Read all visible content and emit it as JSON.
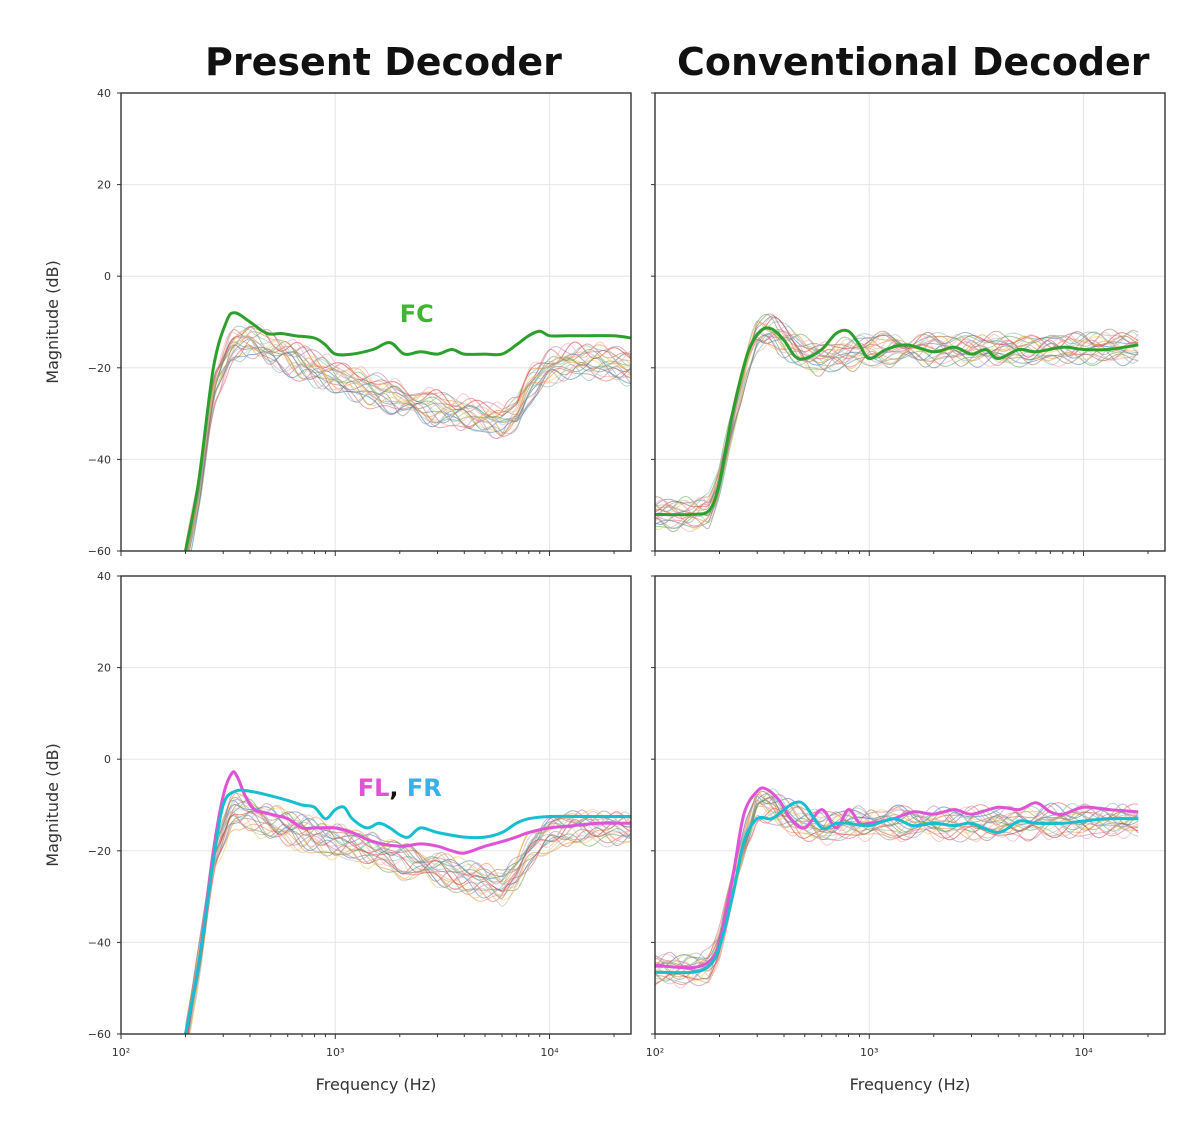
{
  "column_titles": [
    "Present Decoder",
    "Conventional Decoder"
  ],
  "chart_data": [
    {
      "type": "line",
      "panel": "top-left",
      "title": "Present Decoder",
      "xlabel": "",
      "ylabel": "Magnitude (dB)",
      "xscale": "log",
      "xlim": [
        100,
        24000
      ],
      "ylim": [
        -60,
        40
      ],
      "xticks": [
        {
          "value": 100,
          "label": "10²"
        },
        {
          "value": 1000,
          "label": "10³"
        },
        {
          "value": 10000,
          "label": "10⁴"
        }
      ],
      "yticks": [
        {
          "value": -60,
          "label": "−60"
        },
        {
          "value": -40,
          "label": "−40"
        },
        {
          "value": -20,
          "label": "−20"
        },
        {
          "value": 0,
          "label": "0"
        },
        {
          "value": 20,
          "label": "20"
        },
        {
          "value": 40,
          "label": "40"
        }
      ],
      "show_xtick_labels": false,
      "show_ytick_labels": true,
      "grid": true,
      "annotations": [
        {
          "parts": [
            {
              "text": "FC",
              "color": "#3db82e"
            }
          ],
          "x": 2400,
          "y": -10
        }
      ],
      "bundle": {
        "description": "many thin colored channel responses",
        "count": 22,
        "spread_db": 2.5,
        "colors": [
          "#4e79a7",
          "#f28e2b",
          "#e15759",
          "#76b7b2",
          "#59a14f",
          "#edc948",
          "#b07aa1",
          "#ff9da7",
          "#9c755f",
          "#bab0ac",
          "#1f77b4",
          "#d62728"
        ],
        "x": [
          200,
          230,
          270,
          330,
          400,
          500,
          700,
          1000,
          1500,
          2000,
          3000,
          4000,
          5000,
          6000,
          7000,
          8000,
          10000,
          13000,
          17000,
          24000
        ],
        "y": [
          -62,
          -48,
          -25,
          -15,
          -14,
          -16,
          -19,
          -22,
          -25,
          -27,
          -29,
          -30,
          -31,
          -32,
          -30,
          -24,
          -20,
          -18.5,
          -18.5,
          -20
        ]
      },
      "series": [
        {
          "name": "FC",
          "color": "#2ca02c",
          "width": 3,
          "x": [
            200,
            230,
            270,
            310,
            340,
            400,
            480,
            560,
            650,
            800,
            900,
            1000,
            1200,
            1500,
            1800,
            2100,
            2500,
            3000,
            3500,
            4000,
            5000,
            6000,
            7000,
            8000,
            9000,
            10000,
            12000,
            15000,
            20000,
            24000
          ],
          "y": [
            -60,
            -45,
            -20,
            -10,
            -8,
            -10,
            -12.5,
            -12.5,
            -13,
            -13.5,
            -15,
            -17,
            -17,
            -16,
            -14.5,
            -17,
            -16.5,
            -17,
            -16,
            -17,
            -17,
            -17,
            -15,
            -13,
            -12,
            -13,
            -13,
            -13,
            -13,
            -13.5
          ]
        }
      ]
    },
    {
      "type": "line",
      "panel": "top-right",
      "title": "Conventional Decoder",
      "xlabel": "",
      "ylabel": "",
      "xscale": "log",
      "xlim": [
        100,
        24000
      ],
      "ylim": [
        -60,
        40
      ],
      "xticks": [
        {
          "value": 100,
          "label": "10²"
        },
        {
          "value": 1000,
          "label": "10³"
        },
        {
          "value": 10000,
          "label": "10⁴"
        }
      ],
      "yticks": [
        {
          "value": -60,
          "label": "−60"
        },
        {
          "value": -40,
          "label": "−40"
        },
        {
          "value": -20,
          "label": "−20"
        },
        {
          "value": 0,
          "label": "0"
        },
        {
          "value": 20,
          "label": "20"
        },
        {
          "value": 40,
          "label": "40"
        }
      ],
      "show_xtick_labels": false,
      "show_ytick_labels": false,
      "grid": true,
      "annotations": [],
      "bundle": {
        "description": "many thin colored channel responses",
        "count": 22,
        "spread_db": 2.2,
        "colors": [
          "#4e79a7",
          "#f28e2b",
          "#e15759",
          "#76b7b2",
          "#59a14f",
          "#edc948",
          "#b07aa1",
          "#ff9da7",
          "#9c755f",
          "#bab0ac",
          "#1f77b4",
          "#d62728"
        ],
        "x": [
          100,
          150,
          180,
          200,
          230,
          270,
          300,
          350,
          400,
          500,
          600,
          800,
          1000,
          1500,
          2000,
          3000,
          5000,
          8000,
          12000,
          18000
        ],
        "y": [
          -52,
          -52,
          -51,
          -45,
          -32,
          -18,
          -13,
          -12,
          -14,
          -17,
          -18,
          -17,
          -16,
          -16,
          -16,
          -16,
          -16,
          -16,
          -15.5,
          -15.5
        ]
      },
      "series": [
        {
          "name": "",
          "color": "#2ca02c",
          "width": 3,
          "x": [
            100,
            150,
            180,
            200,
            230,
            270,
            310,
            350,
            400,
            450,
            500,
            600,
            700,
            800,
            900,
            1000,
            1200,
            1500,
            2000,
            2500,
            3000,
            3500,
            4000,
            5000,
            6000,
            8000,
            10000,
            13000,
            18000
          ],
          "y": [
            -52,
            -52,
            -51,
            -45,
            -30,
            -17,
            -12,
            -11.5,
            -14,
            -17.5,
            -18,
            -16,
            -12.5,
            -12,
            -15,
            -18,
            -16,
            -15,
            -16.5,
            -15.5,
            -17,
            -16,
            -18,
            -16,
            -16.5,
            -15.5,
            -16,
            -16,
            -15
          ]
        }
      ]
    },
    {
      "type": "line",
      "panel": "bottom-left",
      "title": "",
      "xlabel": "Frequency (Hz)",
      "ylabel": "Magnitude (dB)",
      "xscale": "log",
      "xlim": [
        100,
        24000
      ],
      "ylim": [
        -60,
        40
      ],
      "xticks": [
        {
          "value": 100,
          "label": "10²"
        },
        {
          "value": 1000,
          "label": "10³"
        },
        {
          "value": 10000,
          "label": "10⁴"
        }
      ],
      "yticks": [
        {
          "value": -60,
          "label": "−60"
        },
        {
          "value": -40,
          "label": "−40"
        },
        {
          "value": -20,
          "label": "−20"
        },
        {
          "value": 0,
          "label": "0"
        },
        {
          "value": 20,
          "label": "20"
        },
        {
          "value": 40,
          "label": "40"
        }
      ],
      "show_xtick_labels": true,
      "show_ytick_labels": true,
      "grid": true,
      "annotations": [
        {
          "parts": [
            {
              "text": "FL",
              "color": "#e052d6"
            },
            {
              "text": ", ",
              "color": "#111111"
            },
            {
              "text": "FR",
              "color": "#3ab0e8"
            }
          ],
          "x": 2000,
          "y": -8
        }
      ],
      "bundle": {
        "description": "many thin colored channel responses",
        "count": 22,
        "spread_db": 2.5,
        "colors": [
          "#4e79a7",
          "#f28e2b",
          "#e15759",
          "#76b7b2",
          "#59a14f",
          "#edc948",
          "#b07aa1",
          "#ff9da7",
          "#9c755f",
          "#bab0ac",
          "#1f77b4",
          "#d62728"
        ],
        "x": [
          200,
          230,
          270,
          330,
          400,
          500,
          700,
          1000,
          1500,
          2000,
          3000,
          4000,
          5000,
          6000,
          7000,
          8000,
          10000,
          13000,
          17000,
          24000
        ],
        "y": [
          -62,
          -45,
          -22,
          -11,
          -12,
          -14,
          -16,
          -18,
          -20,
          -22,
          -24,
          -26,
          -27,
          -28,
          -25,
          -20,
          -16.5,
          -15,
          -15,
          -15.5
        ]
      },
      "series": [
        {
          "name": "FL",
          "color": "#e052d6",
          "width": 3,
          "x": [
            200,
            230,
            270,
            300,
            330,
            350,
            380,
            420,
            500,
            600,
            700,
            800,
            1000,
            1200,
            1500,
            2000,
            2500,
            3000,
            3500,
            4000,
            5000,
            6000,
            7000,
            8000,
            10000,
            13000,
            17000,
            24000
          ],
          "y": [
            -60,
            -45,
            -20,
            -8,
            -3,
            -4,
            -8,
            -11,
            -12,
            -13,
            -15,
            -15,
            -15,
            -16,
            -18,
            -19,
            -18.5,
            -19,
            -20,
            -20.5,
            -19,
            -18,
            -17,
            -16,
            -15,
            -14.5,
            -14,
            -14
          ]
        },
        {
          "name": "FR",
          "color": "#17becf",
          "width": 3,
          "x": [
            200,
            230,
            270,
            300,
            340,
            400,
            500,
            600,
            700,
            800,
            900,
            1000,
            1100,
            1200,
            1400,
            1600,
            1800,
            2000,
            2200,
            2500,
            3000,
            4000,
            5000,
            6000,
            7000,
            8000,
            10000,
            13000,
            17000,
            24000
          ],
          "y": [
            -60,
            -45,
            -22,
            -10,
            -7,
            -7,
            -8,
            -9,
            -10,
            -10.5,
            -13,
            -11,
            -10.5,
            -13,
            -15,
            -14,
            -15,
            -16.5,
            -17,
            -15,
            -16,
            -17,
            -17,
            -16,
            -14,
            -13,
            -12.5,
            -12.5,
            -12.5,
            -12.5
          ]
        }
      ]
    },
    {
      "type": "line",
      "panel": "bottom-right",
      "title": "",
      "xlabel": "Frequency (Hz)",
      "ylabel": "",
      "xscale": "log",
      "xlim": [
        100,
        24000
      ],
      "ylim": [
        -60,
        40
      ],
      "xticks": [
        {
          "value": 100,
          "label": "10²"
        },
        {
          "value": 1000,
          "label": "10³"
        },
        {
          "value": 10000,
          "label": "10⁴"
        }
      ],
      "yticks": [
        {
          "value": -60,
          "label": "−60"
        },
        {
          "value": -40,
          "label": "−40"
        },
        {
          "value": -20,
          "label": "−20"
        },
        {
          "value": 0,
          "label": "0"
        },
        {
          "value": 20,
          "label": "20"
        },
        {
          "value": 40,
          "label": "40"
        }
      ],
      "show_xtick_labels": true,
      "show_ytick_labels": false,
      "grid": true,
      "annotations": [],
      "bundle": {
        "description": "many thin colored channel responses",
        "count": 22,
        "spread_db": 2.2,
        "colors": [
          "#4e79a7",
          "#f28e2b",
          "#e15759",
          "#76b7b2",
          "#59a14f",
          "#edc948",
          "#b07aa1",
          "#ff9da7",
          "#9c755f",
          "#bab0ac",
          "#1f77b4",
          "#d62728"
        ],
        "x": [
          100,
          150,
          180,
          200,
          230,
          270,
          300,
          350,
          400,
          500,
          600,
          800,
          1000,
          1500,
          2000,
          3000,
          5000,
          8000,
          12000,
          18000
        ],
        "y": [
          -46,
          -46,
          -45,
          -40,
          -28,
          -16,
          -10,
          -10,
          -12,
          -14,
          -15,
          -14,
          -14,
          -14,
          -14,
          -14,
          -14,
          -13.5,
          -13.5,
          -13.5
        ]
      },
      "series": [
        {
          "name": "FL",
          "color": "#e052d6",
          "width": 3,
          "x": [
            100,
            150,
            180,
            200,
            230,
            260,
            300,
            330,
            380,
            430,
            500,
            600,
            700,
            800,
            900,
            1000,
            1300,
            1600,
            2000,
            2500,
            3000,
            4000,
            5000,
            6000,
            7000,
            8000,
            10000,
            13000,
            18000
          ],
          "y": [
            -45,
            -45.5,
            -44,
            -40,
            -26,
            -12,
            -7,
            -6.5,
            -9,
            -13,
            -15,
            -11,
            -15,
            -11,
            -14,
            -14,
            -13,
            -11.5,
            -12,
            -11,
            -12,
            -10.5,
            -11,
            -9.5,
            -11.5,
            -12,
            -10.5,
            -11,
            -11.5
          ]
        },
        {
          "name": "FR",
          "color": "#17becf",
          "width": 3,
          "x": [
            100,
            150,
            180,
            200,
            230,
            260,
            300,
            350,
            400,
            450,
            500,
            600,
            700,
            800,
            1000,
            1300,
            1600,
            2000,
            2500,
            3000,
            4000,
            5000,
            6000,
            8000,
            10000,
            13000,
            18000
          ],
          "y": [
            -46.5,
            -46.5,
            -45,
            -41,
            -30,
            -18,
            -13,
            -13,
            -11,
            -9.5,
            -10,
            -15,
            -14,
            -14,
            -14.5,
            -13,
            -14.5,
            -14,
            -14.5,
            -14,
            -16,
            -13.5,
            -14,
            -14,
            -13.5,
            -13,
            -13
          ]
        }
      ]
    }
  ]
}
